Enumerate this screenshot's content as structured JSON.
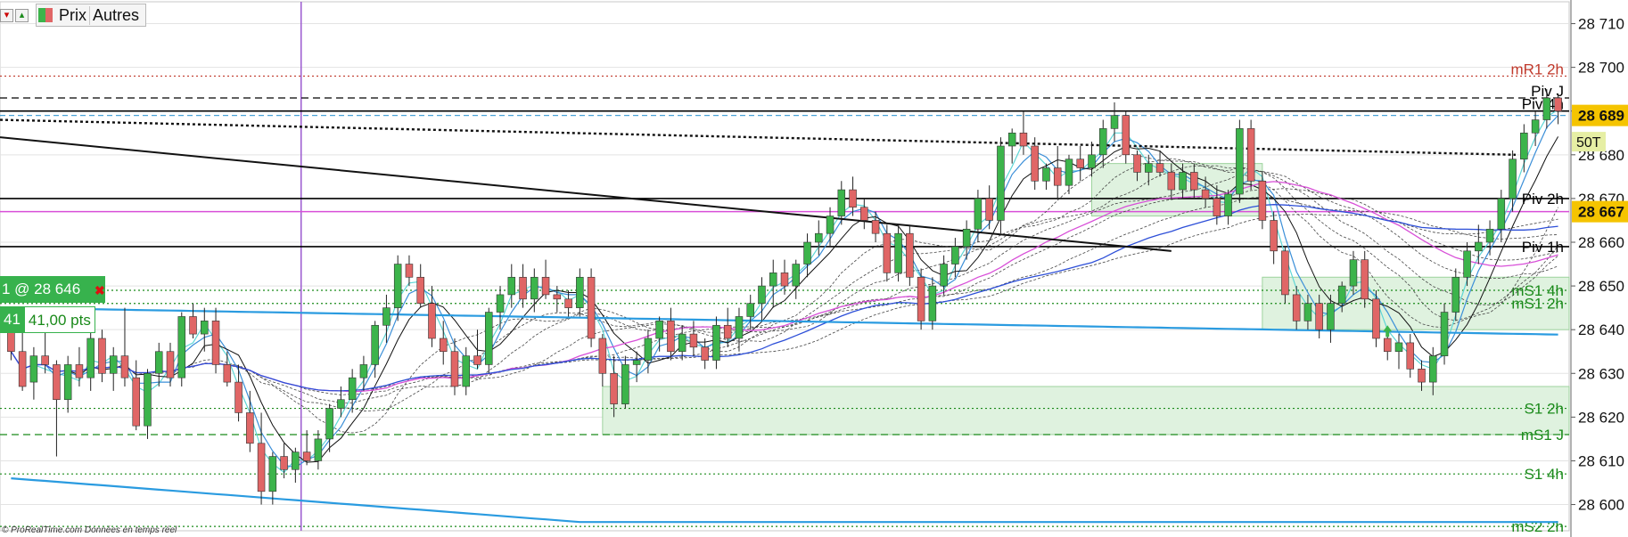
{
  "toolbar": {
    "tabs": [
      "Prix",
      "Autres"
    ]
  },
  "position": {
    "label": "1 @ 28 646",
    "qty": "41",
    "pts": "41,00 pts"
  },
  "footer": "© ProRealTime.com  Données en temps réel",
  "colors": {
    "bull": "#3cb44b",
    "bear": "#e06666",
    "grid": "#e3e3e3",
    "axis": "#000000",
    "price_tag": "#f5c400",
    "green_zone": "#dff2df",
    "blue_line": "#2a9be0",
    "magenta": "#d84fd8",
    "purple": "#9b59d0"
  },
  "chart_data": {
    "type": "candlestick",
    "ylim": [
      28594,
      28715
    ],
    "y_ticks": [
      28710,
      28700,
      28690,
      28680,
      28670,
      28660,
      28650,
      28640,
      28630,
      28620,
      28610,
      28600
    ],
    "y_tick_labels": [
      "28 710",
      "28 700",
      "28 690",
      "28 680",
      "28 670",
      "28 660",
      "28 650",
      "28 640",
      "28 630",
      "28 620",
      "28 610",
      "28 600"
    ],
    "price_tags": [
      {
        "value": 28689,
        "label": "28 689"
      },
      {
        "value": 28667,
        "label": "28 667"
      }
    ],
    "aux_tag": "50T",
    "levels": [
      {
        "name": "mR1 2h",
        "value": 28698,
        "color": "#c0392b",
        "style": "dotted"
      },
      {
        "name": "Piv J",
        "value": 28693,
        "color": "#000000",
        "style": "dashed"
      },
      {
        "name": "Piv 4h",
        "value": 28690,
        "color": "#000000",
        "style": "solid"
      },
      {
        "name": "Piv 2h",
        "value": 28670,
        "color": "#000000",
        "style": "solid"
      },
      {
        "name": "Piv 1h",
        "value": 28659,
        "color": "#000000",
        "style": "solid"
      },
      {
        "name": "mS1 4h",
        "value": 28649,
        "color": "#1a8a1a",
        "style": "dotted"
      },
      {
        "name": "mS1 2h",
        "value": 28646,
        "color": "#1a8a1a",
        "style": "dotted"
      },
      {
        "name": "S1 2h",
        "value": 28622,
        "color": "#1a8a1a",
        "style": "dotted"
      },
      {
        "name": "mS1 J",
        "value": 28616,
        "color": "#1a8a1a",
        "style": "dashed"
      },
      {
        "name": "S1 4h",
        "value": 28607,
        "color": "#1a8a1a",
        "style": "dotted"
      },
      {
        "name": "mS2 2h",
        "value": 28595,
        "color": "#1a8a1a",
        "style": "dotted"
      }
    ],
    "candles": [
      [
        28642,
        28645,
        28633,
        28635
      ],
      [
        28635,
        28640,
        28626,
        28627
      ],
      [
        28628,
        28636,
        28624,
        28634
      ],
      [
        28634,
        28640,
        28630,
        28632
      ],
      [
        28632,
        28633,
        28611,
        28624
      ],
      [
        28624,
        28634,
        28621,
        28632
      ],
      [
        28632,
        28636,
        28627,
        28629
      ],
      [
        28629,
        28640,
        28626,
        28638
      ],
      [
        28638,
        28640,
        28628,
        28630
      ],
      [
        28630,
        28636,
        28626,
        28634
      ],
      [
        28634,
        28645,
        28627,
        28629
      ],
      [
        28629,
        28633,
        28617,
        28618
      ],
      [
        28618,
        28631,
        28615,
        28630
      ],
      [
        28630,
        28637,
        28627,
        28635
      ],
      [
        28635,
        28637,
        28627,
        28629
      ],
      [
        28629,
        28644,
        28627,
        28643
      ],
      [
        28643,
        28646,
        28638,
        28639
      ],
      [
        28639,
        28645,
        28635,
        28642
      ],
      [
        28642,
        28645,
        28630,
        28632
      ],
      [
        28632,
        28635,
        28627,
        28628
      ],
      [
        28628,
        28632,
        28619,
        28621
      ],
      [
        28621,
        28626,
        28612,
        28614
      ],
      [
        28614,
        28621,
        28600,
        28603
      ],
      [
        28603,
        28612,
        28600,
        28611
      ],
      [
        28611,
        28614,
        28606,
        28608
      ],
      [
        28608,
        28613,
        28605,
        28612
      ],
      [
        28612,
        28617,
        28609,
        28610
      ],
      [
        28610,
        28617,
        28608,
        28615
      ],
      [
        28615,
        28623,
        28612,
        28622
      ],
      [
        28622,
        28627,
        28620,
        28624
      ],
      [
        28624,
        28631,
        28621,
        28629
      ],
      [
        28629,
        28634,
        28626,
        28632
      ],
      [
        28632,
        28642,
        28629,
        28641
      ],
      [
        28641,
        28648,
        28637,
        28645
      ],
      [
        28645,
        28657,
        28642,
        28655
      ],
      [
        28655,
        28657,
        28650,
        28652
      ],
      [
        28652,
        28655,
        28645,
        28646
      ],
      [
        28646,
        28650,
        28636,
        28638
      ],
      [
        28638,
        28642,
        28632,
        28635
      ],
      [
        28635,
        28638,
        28625,
        28627
      ],
      [
        28627,
        28636,
        28625,
        28634
      ],
      [
        28634,
        28640,
        28631,
        28632
      ],
      [
        28632,
        28645,
        28630,
        28644
      ],
      [
        28644,
        28650,
        28640,
        28648
      ],
      [
        28648,
        28655,
        28645,
        28652
      ],
      [
        28652,
        28655,
        28645,
        28647
      ],
      [
        28647,
        28654,
        28644,
        28652
      ],
      [
        28652,
        28656,
        28647,
        28648
      ],
      [
        28648,
        28650,
        28644,
        28647
      ],
      [
        28647,
        28649,
        28643,
        28645
      ],
      [
        28645,
        28654,
        28643,
        28652
      ],
      [
        28652,
        28654,
        28636,
        28638
      ],
      [
        28638,
        28639,
        28627,
        28630
      ],
      [
        28630,
        28634,
        28620,
        28623
      ],
      [
        28623,
        28634,
        28622,
        28632
      ],
      [
        28632,
        28635,
        28628,
        28633
      ],
      [
        28633,
        28640,
        28630,
        28638
      ],
      [
        28638,
        28643,
        28635,
        28642
      ],
      [
        28642,
        28645,
        28633,
        28635
      ],
      [
        28635,
        28641,
        28633,
        28639
      ],
      [
        28639,
        28642,
        28634,
        28636
      ],
      [
        28636,
        28638,
        28631,
        28633
      ],
      [
        28633,
        28643,
        28631,
        28641
      ],
      [
        28641,
        28645,
        28636,
        28638
      ],
      [
        28638,
        28645,
        28635,
        28643
      ],
      [
        28643,
        28648,
        28640,
        28646
      ],
      [
        28646,
        28652,
        28642,
        28650
      ],
      [
        28650,
        28656,
        28645,
        28653
      ],
      [
        28653,
        28656,
        28648,
        28650
      ],
      [
        28650,
        28656,
        28647,
        28655
      ],
      [
        28655,
        28662,
        28652,
        28660
      ],
      [
        28660,
        28665,
        28657,
        28662
      ],
      [
        28662,
        28668,
        28659,
        28666
      ],
      [
        28666,
        28674,
        28664,
        28672
      ],
      [
        28672,
        28675,
        28666,
        28668
      ],
      [
        28668,
        28670,
        28663,
        28665
      ],
      [
        28665,
        28667,
        28660,
        28662
      ],
      [
        28662,
        28664,
        28651,
        28653
      ],
      [
        28653,
        28664,
        28651,
        28662
      ],
      [
        28662,
        28664,
        28650,
        28652
      ],
      [
        28652,
        28654,
        28640,
        28642
      ],
      [
        28642,
        28652,
        28640,
        28650
      ],
      [
        28650,
        28657,
        28648,
        28655
      ],
      [
        28655,
        28661,
        28652,
        28659
      ],
      [
        28659,
        28665,
        28656,
        28663
      ],
      [
        28663,
        28672,
        28660,
        28670
      ],
      [
        28670,
        28673,
        28663,
        28665
      ],
      [
        28665,
        28684,
        28662,
        28682
      ],
      [
        28682,
        28686,
        28678,
        28685
      ],
      [
        28685,
        28690,
        28680,
        28682
      ],
      [
        28682,
        28684,
        28672,
        28674
      ],
      [
        28674,
        28678,
        28672,
        28677
      ],
      [
        28677,
        28682,
        28670,
        28673
      ],
      [
        28673,
        28680,
        28671,
        28679
      ],
      [
        28679,
        28682,
        28674,
        28677
      ],
      [
        28677,
        28683,
        28675,
        28680
      ],
      [
        28680,
        28688,
        28677,
        28686
      ],
      [
        28686,
        28692,
        28683,
        28689
      ],
      [
        28689,
        28690,
        28678,
        28680
      ],
      [
        28680,
        28681,
        28674,
        28676
      ],
      [
        28676,
        28680,
        28673,
        28678
      ],
      [
        28678,
        28681,
        28675,
        28676
      ],
      [
        28676,
        28678,
        28670,
        28672
      ],
      [
        28672,
        28678,
        28670,
        28676
      ],
      [
        28676,
        28678,
        28670,
        28672
      ],
      [
        28672,
        28675,
        28668,
        28670
      ],
      [
        28670,
        28673,
        28664,
        28666
      ],
      [
        28666,
        28672,
        28664,
        28671
      ],
      [
        28671,
        28688,
        28669,
        28686
      ],
      [
        28686,
        28688,
        28672,
        28674
      ],
      [
        28674,
        28676,
        28663,
        28665
      ],
      [
        28665,
        28667,
        28655,
        28658
      ],
      [
        28658,
        28659,
        28646,
        28648
      ],
      [
        28648,
        28650,
        28640,
        28642
      ],
      [
        28642,
        28648,
        28640,
        28646
      ],
      [
        28646,
        28648,
        28638,
        28640
      ],
      [
        28640,
        28648,
        28637,
        28646
      ],
      [
        28646,
        28651,
        28644,
        28650
      ],
      [
        28650,
        28658,
        28648,
        28656
      ],
      [
        28656,
        28658,
        28645,
        28647
      ],
      [
        28647,
        28649,
        28636,
        28638
      ],
      [
        28638,
        28640,
        28633,
        28635
      ],
      [
        28635,
        28639,
        28631,
        28637
      ],
      [
        28637,
        28639,
        28629,
        28631
      ],
      [
        28631,
        28633,
        28626,
        28628
      ],
      [
        28628,
        28636,
        28625,
        28634
      ],
      [
        28634,
        28646,
        28632,
        28644
      ],
      [
        28644,
        28654,
        28642,
        28652
      ],
      [
        28652,
        28660,
        28650,
        28658
      ],
      [
        28658,
        28664,
        28655,
        28660
      ],
      [
        28660,
        28665,
        28657,
        28663
      ],
      [
        28663,
        28672,
        28660,
        28670
      ],
      [
        28670,
        28681,
        28667,
        28679
      ],
      [
        28679,
        28687,
        28676,
        28685
      ],
      [
        28685,
        28690,
        28682,
        28688
      ],
      [
        28688,
        28695,
        28686,
        28693
      ],
      [
        28693,
        28694,
        28687,
        28690
      ]
    ],
    "x_marker_index": 25,
    "arrow_index": 121
  }
}
